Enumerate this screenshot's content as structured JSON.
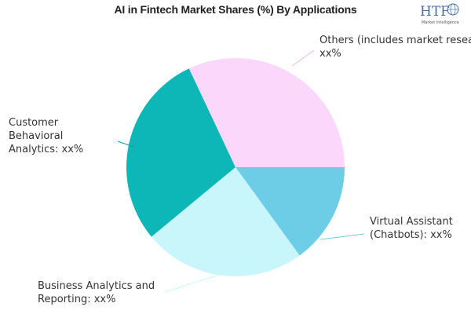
{
  "chart_data": {
    "type": "pie",
    "title": "AI in Fintech Market Shares (%) By Applications",
    "slices": [
      {
        "label": "Virtual Assistant (Chatbots): xx%",
        "value": 15,
        "color": "#6ecde6",
        "leader": "#6ecde6"
      },
      {
        "label": "Business Analytics and Reporting: xx%",
        "value": 24,
        "color": "#c9f6fb",
        "leader": "#c9f6fb"
      },
      {
        "label": "Customer Behavioral Analytics: xx%",
        "value": 29,
        "color": "#0db7b7",
        "leader": "#0aa3a3"
      },
      {
        "label": "Others (includes market research: xx%",
        "value": 32,
        "color": "#fcd7fc",
        "leader": "#f3b6f3"
      }
    ],
    "legend": "none"
  },
  "logo": {
    "text": "HTF",
    "subtext": "Market Intelligence",
    "color": "#4a6fa5"
  }
}
